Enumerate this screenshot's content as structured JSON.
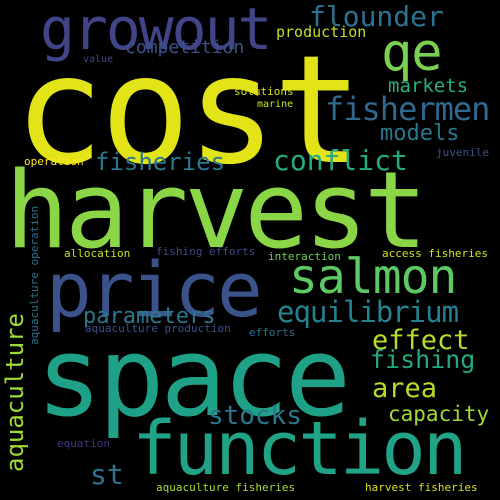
{
  "words": [
    {
      "key": "cost",
      "text": "cost",
      "color": "#e2e418"
    },
    {
      "key": "harvest",
      "text": "harvest",
      "color": "#8bd646"
    },
    {
      "key": "space",
      "text": "space",
      "color": "#1fa187"
    },
    {
      "key": "function",
      "text": "function",
      "color": "#20a386"
    },
    {
      "key": "price",
      "text": "price",
      "color": "#3b528b"
    },
    {
      "key": "growout",
      "text": "growout",
      "color": "#414487"
    },
    {
      "key": "salmon",
      "text": "salmon",
      "color": "#5ec962"
    },
    {
      "key": "qe",
      "text": "qe",
      "color": "#7ad151"
    },
    {
      "key": "flounder",
      "text": "flounder",
      "color": "#2c728e"
    },
    {
      "key": "fishermen",
      "text": "fishermen",
      "color": "#31688e"
    },
    {
      "key": "equilibrium",
      "text": "equilibrium",
      "color": "#26818e"
    },
    {
      "key": "aquaculture",
      "text": "aquaculture",
      "color": "#a0da39"
    },
    {
      "key": "fisheries",
      "text": "fisheries",
      "color": "#2a788e"
    },
    {
      "key": "conflict",
      "text": "conflict",
      "color": "#25ab82"
    },
    {
      "key": "effect",
      "text": "effect",
      "color": "#b5de2b"
    },
    {
      "key": "fishing",
      "text": "fishing",
      "color": "#22a884"
    },
    {
      "key": "area",
      "text": "area",
      "color": "#b5de2b"
    },
    {
      "key": "stocks",
      "text": "stocks",
      "color": "#2a788e"
    },
    {
      "key": "capacity",
      "text": "capacity",
      "color": "#a0da39"
    },
    {
      "key": "st",
      "text": "st",
      "color": "#2c728e"
    },
    {
      "key": "parameters",
      "text": "parameters",
      "color": "#2a788e"
    },
    {
      "key": "models",
      "text": "models",
      "color": "#2a788e"
    },
    {
      "key": "markets",
      "text": "markets",
      "color": "#28ae80"
    },
    {
      "key": "competition",
      "text": "competition",
      "color": "#3b528b"
    },
    {
      "key": "production",
      "text": "production",
      "color": "#c2df23"
    },
    {
      "key": "value",
      "text": "value",
      "color": "#3e4989"
    },
    {
      "key": "solutions",
      "text": "solutions",
      "color": "#d8e219"
    },
    {
      "key": "marine",
      "text": "marine",
      "color": "#d2e21b"
    },
    {
      "key": "juvenile",
      "text": "juvenile",
      "color": "#3b528b"
    },
    {
      "key": "operation",
      "text": "operation",
      "color": "#fde725"
    },
    {
      "key": "aquaculture_operation",
      "text": "aquaculture operation",
      "color": "#2c728e"
    },
    {
      "key": "allocation",
      "text": "allocation",
      "color": "#c8e020"
    },
    {
      "key": "fishing_efforts",
      "text": "fishing efforts",
      "color": "#3e4989"
    },
    {
      "key": "interaction",
      "text": "interaction",
      "color": "#6ece58"
    },
    {
      "key": "access_fisheries",
      "text": "access fisheries",
      "color": "#d8e219"
    },
    {
      "key": "aquaculture_production",
      "text": "aquaculture production",
      "color": "#3b528b"
    },
    {
      "key": "efforts",
      "text": "efforts",
      "color": "#2c728e"
    },
    {
      "key": "equation",
      "text": "equation",
      "color": "#46337e"
    },
    {
      "key": "aquaculture_fisheries",
      "text": "aquaculture fisheries",
      "color": "#a8db34"
    },
    {
      "key": "harvest_fisheries",
      "text": "harvest fisheries",
      "color": "#d8e219"
    }
  ]
}
